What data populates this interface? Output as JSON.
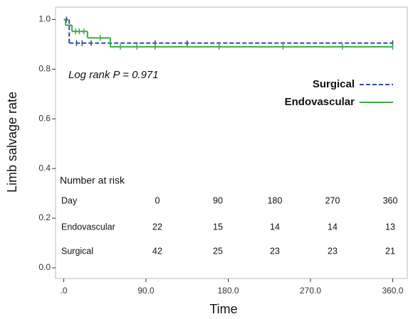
{
  "chart_data": {
    "type": "km",
    "xlabel": "Time",
    "ylabel": "Limb salvage rate",
    "annotation": "Log rank P = 0.971",
    "xlim": [
      -9,
      376
    ],
    "ylim": [
      -0.043,
      1.05
    ],
    "xticks": [
      {
        "value": 0,
        "label": ".0"
      },
      {
        "value": 90,
        "label": "90.0"
      },
      {
        "value": 180,
        "label": "180.0"
      },
      {
        "value": 270,
        "label": "270.0"
      },
      {
        "value": 360,
        "label": "360.0"
      }
    ],
    "yticks": [
      {
        "value": 0,
        "label": "0.0"
      },
      0.2,
      0.4,
      0.6,
      0.8,
      {
        "value": 1,
        "label": "1.0"
      }
    ],
    "legend": "upper right",
    "series": [
      {
        "name": "Surgical",
        "color": "#2f4a9a",
        "linestyle": "dashed",
        "x": [
          0,
          6
        ],
        "values": [
          1.0,
          0.905
        ],
        "censored": [
          3,
          14,
          20,
          30,
          100,
          135,
          360
        ]
      },
      {
        "name": "Endovascular",
        "color": "#35b040",
        "linestyle": "solid",
        "x": [
          0,
          2,
          9,
          26,
          51
        ],
        "values": [
          1.0,
          0.977,
          0.952,
          0.926,
          0.89
        ],
        "censored": [
          13,
          17,
          22,
          40,
          62,
          80,
          100,
          170,
          240,
          305,
          360
        ]
      }
    ],
    "risk_table": {
      "title": "Number at risk",
      "header_label": "Day",
      "days": [
        0,
        90,
        180,
        270,
        360
      ],
      "rows": [
        {
          "label": "Endovascular",
          "values": [
            22,
            15,
            14,
            14,
            13
          ]
        },
        {
          "label": "Surgical",
          "values": [
            42,
            25,
            23,
            23,
            21
          ]
        }
      ]
    }
  }
}
